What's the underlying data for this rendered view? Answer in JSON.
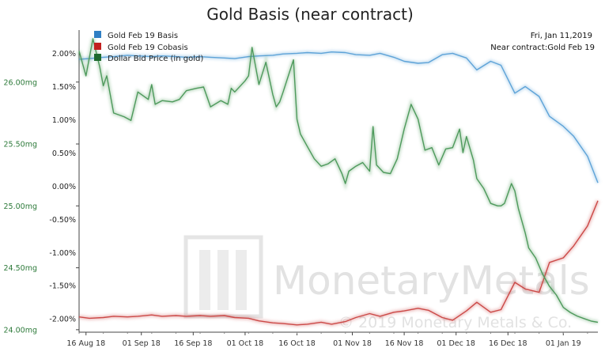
{
  "chart_data": {
    "type": "line",
    "title": "Gold Basis (near contract)",
    "info": {
      "date": "Fri, Jan 11,2019",
      "contract": "Near contract:Gold Feb 19"
    },
    "watermark": {
      "brand": "MonetaryMetals",
      "copyright": "© 2019 Monetary Metals & Co."
    },
    "x_range": [
      "2018-08-14",
      "2019-01-11"
    ],
    "x_tick_labels": [
      {
        "date": "2018-08-16",
        "label": "16 Aug 18"
      },
      {
        "date": "2018-09-01",
        "label": "01 Sep 18"
      },
      {
        "date": "2018-09-16",
        "label": "16 Sep 18"
      },
      {
        "date": "2018-10-01",
        "label": "01 Oct 18"
      },
      {
        "date": "2018-10-16",
        "label": "16 Oct 18"
      },
      {
        "date": "2018-11-01",
        "label": "01 Nov 18"
      },
      {
        "date": "2018-11-16",
        "label": "16 Nov 18"
      },
      {
        "date": "2018-12-01",
        "label": "01 Dec 18"
      },
      {
        "date": "2018-12-16",
        "label": "16 Dec 18"
      },
      {
        "date": "2019-01-01",
        "label": "01 Jan 19"
      }
    ],
    "y_left": {
      "range": [
        23.98,
        26.42
      ],
      "ticks": [
        {
          "value": 24.0,
          "label": "24.00mg"
        },
        {
          "value": 24.5,
          "label": "24.50mg"
        },
        {
          "value": 25.0,
          "label": "25.00mg"
        },
        {
          "value": 25.5,
          "label": "25.50mg"
        },
        {
          "value": 26.0,
          "label": "26.00mg"
        }
      ]
    },
    "y_right": {
      "range": [
        -2.2,
        2.35
      ],
      "ticks": [
        {
          "value": -2.0,
          "label": "-2.00%"
        },
        {
          "value": -1.5,
          "label": "-1.50%"
        },
        {
          "value": -1.0,
          "label": "-1.00%"
        },
        {
          "value": -0.5,
          "label": "-0.50%"
        },
        {
          "value": 0.0,
          "label": "0.00%"
        },
        {
          "value": 0.5,
          "label": "0.50%"
        },
        {
          "value": 1.0,
          "label": "1.00%"
        },
        {
          "value": 1.5,
          "label": "1.50%"
        },
        {
          "value": 2.0,
          "label": "2.00%"
        }
      ]
    },
    "grid": false,
    "legend_position": "top-left",
    "series": [
      {
        "name": "Gold Feb 19 Basis",
        "axis": "right",
        "color": "#5ea3d8",
        "legend_color": "#2f7fc4",
        "points": [
          [
            "2018-08-14",
            1.91
          ],
          [
            "2018-08-17",
            1.92
          ],
          [
            "2018-08-21",
            1.94
          ],
          [
            "2018-08-24",
            1.95
          ],
          [
            "2018-08-28",
            1.97
          ],
          [
            "2018-08-31",
            1.96
          ],
          [
            "2018-09-04",
            1.95
          ],
          [
            "2018-09-07",
            1.96
          ],
          [
            "2018-09-11",
            1.95
          ],
          [
            "2018-09-14",
            1.94
          ],
          [
            "2018-09-18",
            1.95
          ],
          [
            "2018-09-21",
            1.94
          ],
          [
            "2018-09-25",
            1.93
          ],
          [
            "2018-09-28",
            1.92
          ],
          [
            "2018-10-02",
            1.95
          ],
          [
            "2018-10-05",
            1.96
          ],
          [
            "2018-10-09",
            1.97
          ],
          [
            "2018-10-12",
            1.99
          ],
          [
            "2018-10-16",
            2.0
          ],
          [
            "2018-10-19",
            2.01
          ],
          [
            "2018-10-23",
            2.0
          ],
          [
            "2018-10-26",
            2.02
          ],
          [
            "2018-10-30",
            2.01
          ],
          [
            "2018-11-02",
            1.98
          ],
          [
            "2018-11-06",
            1.97
          ],
          [
            "2018-11-09",
            2.0
          ],
          [
            "2018-11-13",
            1.94
          ],
          [
            "2018-11-16",
            1.88
          ],
          [
            "2018-11-20",
            1.85
          ],
          [
            "2018-11-23",
            1.86
          ],
          [
            "2018-11-27",
            1.98
          ],
          [
            "2018-11-30",
            2.0
          ],
          [
            "2018-12-04",
            1.93
          ],
          [
            "2018-12-07",
            1.75
          ],
          [
            "2018-12-11",
            1.88
          ],
          [
            "2018-12-14",
            1.82
          ],
          [
            "2018-12-18",
            1.4
          ],
          [
            "2018-12-21",
            1.5
          ],
          [
            "2018-12-25",
            1.35
          ],
          [
            "2018-12-28",
            1.05
          ],
          [
            "2019-01-01",
            0.9
          ],
          [
            "2019-01-04",
            0.75
          ],
          [
            "2019-01-08",
            0.45
          ],
          [
            "2019-01-11",
            0.05
          ]
        ]
      },
      {
        "name": "Gold Feb 19 Cobasis",
        "axis": "right",
        "color": "#cc4a48",
        "legend_color": "#c2201f",
        "points": [
          [
            "2018-08-14",
            -1.97
          ],
          [
            "2018-08-17",
            -1.99
          ],
          [
            "2018-08-21",
            -1.98
          ],
          [
            "2018-08-24",
            -1.96
          ],
          [
            "2018-08-28",
            -1.97
          ],
          [
            "2018-08-31",
            -1.96
          ],
          [
            "2018-09-04",
            -1.94
          ],
          [
            "2018-09-07",
            -1.96
          ],
          [
            "2018-09-11",
            -1.95
          ],
          [
            "2018-09-14",
            -1.96
          ],
          [
            "2018-09-18",
            -1.95
          ],
          [
            "2018-09-21",
            -1.96
          ],
          [
            "2018-09-25",
            -1.95
          ],
          [
            "2018-09-28",
            -1.98
          ],
          [
            "2018-10-02",
            -1.99
          ],
          [
            "2018-10-05",
            -2.03
          ],
          [
            "2018-10-09",
            -2.06
          ],
          [
            "2018-10-12",
            -2.07
          ],
          [
            "2018-10-16",
            -2.09
          ],
          [
            "2018-10-19",
            -2.08
          ],
          [
            "2018-10-23",
            -2.05
          ],
          [
            "2018-10-26",
            -2.08
          ],
          [
            "2018-10-30",
            -2.04
          ],
          [
            "2018-11-02",
            -1.98
          ],
          [
            "2018-11-06",
            -1.92
          ],
          [
            "2018-11-09",
            -1.96
          ],
          [
            "2018-11-13",
            -1.9
          ],
          [
            "2018-11-16",
            -1.88
          ],
          [
            "2018-11-20",
            -1.84
          ],
          [
            "2018-11-23",
            -1.87
          ],
          [
            "2018-11-27",
            -1.98
          ],
          [
            "2018-11-30",
            -2.02
          ],
          [
            "2018-12-04",
            -1.88
          ],
          [
            "2018-12-07",
            -1.75
          ],
          [
            "2018-12-11",
            -1.9
          ],
          [
            "2018-12-14",
            -1.86
          ],
          [
            "2018-12-18",
            -1.45
          ],
          [
            "2018-12-21",
            -1.55
          ],
          [
            "2018-12-25",
            -1.6
          ],
          [
            "2018-12-28",
            -1.15
          ],
          [
            "2019-01-01",
            -1.08
          ],
          [
            "2019-01-04",
            -0.9
          ],
          [
            "2019-01-08",
            -0.6
          ],
          [
            "2019-01-11",
            -0.22
          ]
        ]
      },
      {
        "name": "Dollar Bid Price (in gold)",
        "axis": "left",
        "color": "#4e9a5c",
        "legend_color": "#1e6a2e",
        "points": [
          [
            "2018-08-14",
            26.25
          ],
          [
            "2018-08-16",
            26.05
          ],
          [
            "2018-08-18",
            26.35
          ],
          [
            "2018-08-20",
            26.12
          ],
          [
            "2018-08-21",
            25.97
          ],
          [
            "2018-08-22",
            26.05
          ],
          [
            "2018-08-24",
            25.75
          ],
          [
            "2018-08-27",
            25.72
          ],
          [
            "2018-08-29",
            25.69
          ],
          [
            "2018-08-31",
            25.92
          ],
          [
            "2018-09-03",
            25.86
          ],
          [
            "2018-09-04",
            25.98
          ],
          [
            "2018-09-05",
            25.82
          ],
          [
            "2018-09-07",
            25.85
          ],
          [
            "2018-09-10",
            25.84
          ],
          [
            "2018-09-12",
            25.86
          ],
          [
            "2018-09-14",
            25.93
          ],
          [
            "2018-09-17",
            25.95
          ],
          [
            "2018-09-19",
            25.96
          ],
          [
            "2018-09-20",
            25.88
          ],
          [
            "2018-09-21",
            25.8
          ],
          [
            "2018-09-24",
            25.85
          ],
          [
            "2018-09-26",
            25.82
          ],
          [
            "2018-09-27",
            25.95
          ],
          [
            "2018-09-28",
            25.92
          ],
          [
            "2018-10-01",
            26.01
          ],
          [
            "2018-10-02",
            26.05
          ],
          [
            "2018-10-03",
            26.28
          ],
          [
            "2018-10-05",
            25.98
          ],
          [
            "2018-10-07",
            26.16
          ],
          [
            "2018-10-09",
            25.9
          ],
          [
            "2018-10-10",
            25.8
          ],
          [
            "2018-10-11",
            25.84
          ],
          [
            "2018-10-12",
            25.92
          ],
          [
            "2018-10-15",
            26.18
          ],
          [
            "2018-10-16",
            25.7
          ],
          [
            "2018-10-17",
            25.58
          ],
          [
            "2018-10-19",
            25.48
          ],
          [
            "2018-10-21",
            25.38
          ],
          [
            "2018-10-23",
            25.32
          ],
          [
            "2018-10-25",
            25.34
          ],
          [
            "2018-10-27",
            25.38
          ],
          [
            "2018-10-29",
            25.26
          ],
          [
            "2018-10-30",
            25.18
          ],
          [
            "2018-10-31",
            25.28
          ],
          [
            "2018-11-02",
            25.32
          ],
          [
            "2018-11-04",
            25.35
          ],
          [
            "2018-11-06",
            25.28
          ],
          [
            "2018-11-07",
            25.64
          ],
          [
            "2018-11-08",
            25.33
          ],
          [
            "2018-11-10",
            25.27
          ],
          [
            "2018-11-12",
            25.26
          ],
          [
            "2018-11-14",
            25.38
          ],
          [
            "2018-11-16",
            25.62
          ],
          [
            "2018-11-18",
            25.82
          ],
          [
            "2018-11-20",
            25.7
          ],
          [
            "2018-11-22",
            25.45
          ],
          [
            "2018-11-24",
            25.47
          ],
          [
            "2018-11-26",
            25.33
          ],
          [
            "2018-11-28",
            25.46
          ],
          [
            "2018-11-30",
            25.47
          ],
          [
            "2018-12-02",
            25.62
          ],
          [
            "2018-12-03",
            25.43
          ],
          [
            "2018-12-04",
            25.56
          ],
          [
            "2018-12-06",
            25.37
          ],
          [
            "2018-12-07",
            25.22
          ],
          [
            "2018-12-09",
            25.14
          ],
          [
            "2018-12-10",
            25.08
          ],
          [
            "2018-12-11",
            25.02
          ],
          [
            "2018-12-13",
            25.0
          ],
          [
            "2018-12-14",
            25.0
          ],
          [
            "2018-12-15",
            25.02
          ],
          [
            "2018-12-17",
            25.18
          ],
          [
            "2018-12-18",
            25.12
          ],
          [
            "2018-12-19",
            24.98
          ],
          [
            "2018-12-21",
            24.78
          ],
          [
            "2018-12-22",
            24.66
          ],
          [
            "2018-12-24",
            24.58
          ],
          [
            "2018-12-26",
            24.45
          ],
          [
            "2018-12-28",
            24.35
          ],
          [
            "2018-12-30",
            24.28
          ],
          [
            "2019-01-01",
            24.18
          ],
          [
            "2019-01-03",
            24.14
          ],
          [
            "2019-01-05",
            24.11
          ],
          [
            "2019-01-07",
            24.09
          ],
          [
            "2019-01-09",
            24.07
          ],
          [
            "2019-01-11",
            24.06
          ]
        ]
      }
    ]
  }
}
